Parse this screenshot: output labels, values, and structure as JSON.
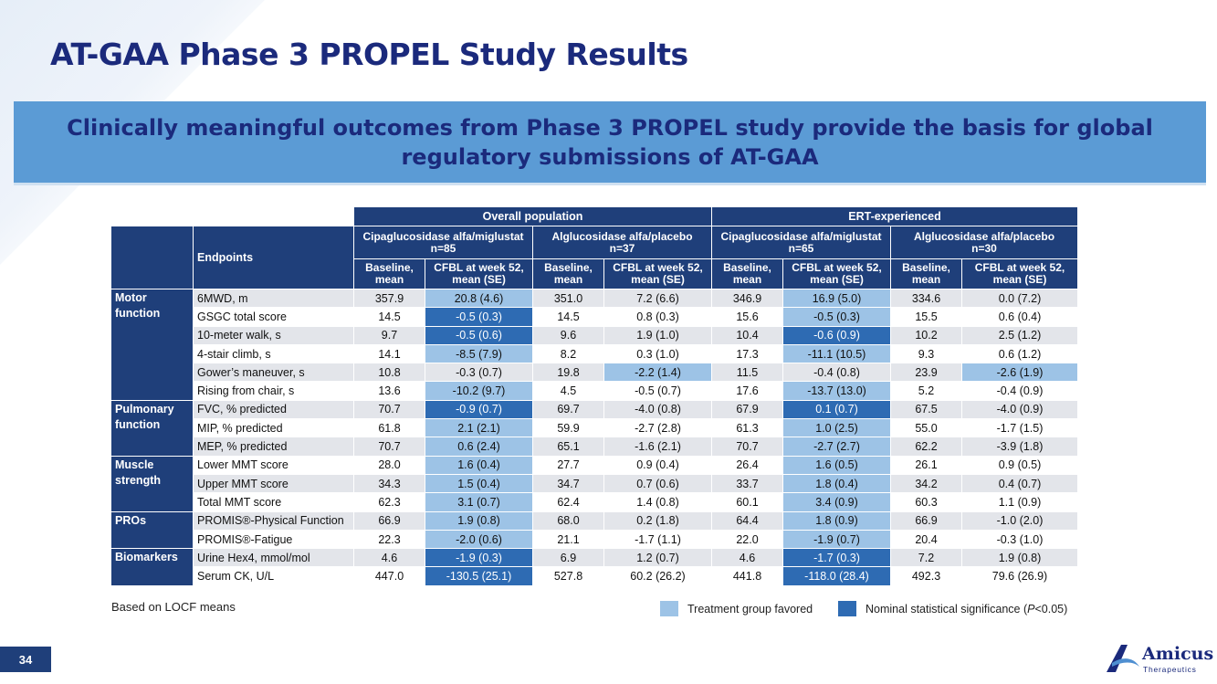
{
  "title": "AT-GAA Phase 3 PROPEL Study Results",
  "banner": "Clinically meaningful outcomes from Phase 3 PROPEL study provide the basis for global regulatory submissions of AT-GAA",
  "table": {
    "groups": [
      "Overall population",
      "ERT-experienced"
    ],
    "endpoints_label": "Endpoints",
    "arms": [
      "Cipaglucosidase alfa/miglustat\nn=85",
      "Alglucosidase alfa/placebo\nn=37",
      "Cipaglucosidase alfa/miglustat\nn=65",
      "Alglucosidase alfa/placebo\nn=30"
    ],
    "col_baseline": "Baseline,\nmean",
    "col_cfbl": "CFBL at week 52,\nmean (SE)",
    "categories": [
      {
        "label": "Motor function",
        "rows": 6
      },
      {
        "label": "Pulmonary function",
        "rows": 3
      },
      {
        "label": "Muscle strength",
        "rows": 3
      },
      {
        "label": "PROs",
        "rows": 2
      },
      {
        "label": "Biomarkers",
        "rows": 2
      }
    ],
    "rows": [
      {
        "endpoint": "6MWD, m",
        "values": [
          "357.9",
          "20.8 (4.6)",
          "351.0",
          "7.2 (6.6)",
          "346.9",
          "16.9 (5.0)",
          "334.6",
          "0.0 (7.2)"
        ],
        "shade": [
          "",
          "fav",
          "",
          "",
          "",
          "fav",
          "",
          ""
        ]
      },
      {
        "endpoint": "GSGC total score",
        "values": [
          "14.5",
          "-0.5 (0.3)",
          "14.5",
          "0.8 (0.3)",
          "15.6",
          "-0.5 (0.3)",
          "15.5",
          "0.6 (0.4)"
        ],
        "shade": [
          "",
          "sig",
          "",
          "",
          "",
          "fav",
          "",
          ""
        ]
      },
      {
        "endpoint": "10-meter walk, s",
        "values": [
          "9.7",
          "-0.5 (0.6)",
          "9.6",
          "1.9 (1.0)",
          "10.4",
          "-0.6 (0.9)",
          "10.2",
          "2.5 (1.2)"
        ],
        "shade": [
          "",
          "sig",
          "",
          "",
          "",
          "sig",
          "",
          ""
        ]
      },
      {
        "endpoint": "4-stair climb, s",
        "values": [
          "14.1",
          "-8.5 (7.9)",
          "8.2",
          "0.3 (1.0)",
          "17.3",
          "-11.1 (10.5)",
          "9.3",
          "0.6 (1.2)"
        ],
        "shade": [
          "",
          "fav",
          "",
          "",
          "",
          "fav",
          "",
          ""
        ]
      },
      {
        "endpoint": "Gower’s maneuver, s",
        "values": [
          "10.8",
          "-0.3 (0.7)",
          "19.8",
          "-2.2 (1.4)",
          "11.5",
          "-0.4 (0.8)",
          "23.9",
          "-2.6 (1.9)"
        ],
        "shade": [
          "",
          "",
          "",
          "fav",
          "",
          "",
          "",
          "fav"
        ]
      },
      {
        "endpoint": "Rising from chair, s",
        "values": [
          "13.6",
          "-10.2 (9.7)",
          "4.5",
          "-0.5 (0.7)",
          "17.6",
          "-13.7 (13.0)",
          "5.2",
          "-0.4 (0.9)"
        ],
        "shade": [
          "",
          "fav",
          "",
          "",
          "",
          "fav",
          "",
          ""
        ]
      },
      {
        "endpoint": "FVC, % predicted",
        "values": [
          "70.7",
          "-0.9 (0.7)",
          "69.7",
          "-4.0 (0.8)",
          "67.9",
          "0.1 (0.7)",
          "67.5",
          "-4.0 (0.9)"
        ],
        "shade": [
          "",
          "sig",
          "",
          "",
          "",
          "sig",
          "",
          ""
        ]
      },
      {
        "endpoint": "MIP, % predicted",
        "values": [
          "61.8",
          "2.1 (2.1)",
          "59.9",
          "-2.7 (2.8)",
          "61.3",
          "1.0 (2.5)",
          "55.0",
          "-1.7 (1.5)"
        ],
        "shade": [
          "",
          "fav",
          "",
          "",
          "",
          "fav",
          "",
          ""
        ]
      },
      {
        "endpoint": "MEP, % predicted",
        "values": [
          "70.7",
          "0.6 (2.4)",
          "65.1",
          "-1.6 (2.1)",
          "70.7",
          "-2.7 (2.7)",
          "62.2",
          "-3.9 (1.8)"
        ],
        "shade": [
          "",
          "fav",
          "",
          "",
          "",
          "fav",
          "",
          ""
        ]
      },
      {
        "endpoint": "Lower MMT score",
        "values": [
          "28.0",
          "1.6 (0.4)",
          "27.7",
          "0.9 (0.4)",
          "26.4",
          "1.6 (0.5)",
          "26.1",
          "0.9 (0.5)"
        ],
        "shade": [
          "",
          "fav",
          "",
          "",
          "",
          "fav",
          "",
          ""
        ]
      },
      {
        "endpoint": "Upper MMT score",
        "values": [
          "34.3",
          "1.5 (0.4)",
          "34.7",
          "0.7 (0.6)",
          "33.7",
          "1.8 (0.4)",
          "34.2",
          "0.4 (0.7)"
        ],
        "shade": [
          "",
          "fav",
          "",
          "",
          "",
          "fav",
          "",
          ""
        ]
      },
      {
        "endpoint": "Total MMT score",
        "values": [
          "62.3",
          "3.1 (0.7)",
          "62.4",
          "1.4 (0.8)",
          "60.1",
          "3.4 (0.9)",
          "60.3",
          "1.1 (0.9)"
        ],
        "shade": [
          "",
          "fav",
          "",
          "",
          "",
          "fav",
          "",
          ""
        ]
      },
      {
        "endpoint": "PROMIS®-Physical Function",
        "values": [
          "66.9",
          "1.9 (0.8)",
          "68.0",
          "0.2 (1.8)",
          "64.4",
          "1.8 (0.9)",
          "66.9",
          "-1.0 (2.0)"
        ],
        "shade": [
          "",
          "fav",
          "",
          "",
          "",
          "fav",
          "",
          ""
        ]
      },
      {
        "endpoint": "PROMIS®-Fatigue",
        "values": [
          "22.3",
          "-2.0 (0.6)",
          "21.1",
          "-1.7 (1.1)",
          "22.0",
          "-1.9 (0.7)",
          "20.4",
          "-0.3 (1.0)"
        ],
        "shade": [
          "",
          "fav",
          "",
          "",
          "",
          "fav",
          "",
          ""
        ]
      },
      {
        "endpoint": "Urine Hex4, mmol/mol",
        "values": [
          "4.6",
          "-1.9 (0.3)",
          "6.9",
          "1.2 (0.7)",
          "4.6",
          "-1.7 (0.3)",
          "7.2",
          "1.9 (0.8)"
        ],
        "shade": [
          "",
          "sig",
          "",
          "",
          "",
          "sig",
          "",
          ""
        ]
      },
      {
        "endpoint": "Serum CK, U/L",
        "values": [
          "447.0",
          "-130.5 (25.1)",
          "527.8",
          "60.2 (26.2)",
          "441.8",
          "-118.0 (28.4)",
          "492.3",
          "79.6 (26.9)"
        ],
        "shade": [
          "",
          "sig",
          "",
          "",
          "",
          "sig",
          "",
          ""
        ]
      }
    ]
  },
  "footnote": "Based on LOCF means",
  "legend": {
    "favored_label": "Treatment group favored",
    "significance_label": "Nominal statistical significance (",
    "significance_p": "P",
    "significance_suffix": "<0.05)",
    "favored_color": "#9dc3e6",
    "significance_color": "#2e6bb3"
  },
  "page_number": "34",
  "logo": {
    "name": "Amicus",
    "sub": "Therapeutics",
    "icon": "amicus-logo-icon"
  },
  "colors": {
    "title": "#1b2a7c",
    "banner": "#5b9bd5",
    "header": "#1f3f7a",
    "row_shade": "#e3e5ea"
  }
}
